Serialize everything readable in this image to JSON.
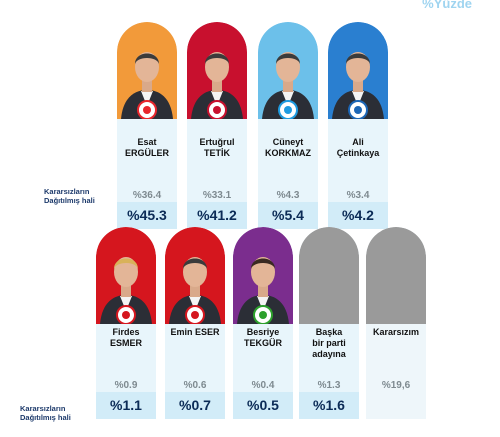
{
  "header": {
    "corner_title": "%Yüzde"
  },
  "chart_data": {
    "type": "bar",
    "row_label": "Kararsızların\nDağıtılmış hali",
    "candidates": [
      {
        "name": "Esat\nERGÜLER",
        "old": "%36.4",
        "new": "%45.3",
        "old_value": 36.4,
        "new_value": 45.3,
        "color": "#e8262c",
        "bg": "#f29a3a",
        "logo_color": "#e8262c"
      },
      {
        "name": "Ertuğrul\nTETİK",
        "old": "%33.1",
        "new": "%41.2",
        "old_value": 33.1,
        "new_value": 41.2,
        "color": "#c8102e",
        "bg": "#c8102e",
        "logo_color": "#c8102e"
      },
      {
        "name": "Cüneyt\nKORKMAZ",
        "old": "%4.3",
        "new": "%5.4",
        "old_value": 4.3,
        "new_value": 5.4,
        "color": "#1f9be0",
        "bg": "#6cc0ea",
        "logo_color": "#1f9be0"
      },
      {
        "name": "Ali\nÇetinkaya",
        "old": "%3.4",
        "new": "%4.2",
        "old_value": 3.4,
        "new_value": 4.2,
        "color": "#1c66b5",
        "bg": "#2a7fd0",
        "logo_color": "#1c66b5"
      },
      {
        "name": "Firdes\nESMER",
        "old": "%0.9",
        "new": "%1.1",
        "old_value": 0.9,
        "new_value": 1.1,
        "color": "#d5161e",
        "bg": "#d5161e",
        "logo_color": "#d5161e"
      },
      {
        "name": "Emin ESER",
        "old": "%0.6",
        "new": "%0.7",
        "old_value": 0.6,
        "new_value": 0.7,
        "color": "#d5161e",
        "bg": "#d5161e",
        "logo_color": "#d5161e"
      },
      {
        "name": "Besriye\nTEKGÜR",
        "old": "%0.4",
        "new": "%0.5",
        "old_value": 0.4,
        "new_value": 0.5,
        "color": "#7b2d8e",
        "bg": "#7b2d8e",
        "logo_color": "#2ca02c"
      },
      {
        "name": "Başka\nbir parti\nadayına",
        "old": "%1.3",
        "new": "%1.6",
        "old_value": 1.3,
        "new_value": 1.6,
        "color": "#9a9a9a",
        "bg": "#9a9a9a",
        "logo_color": ""
      },
      {
        "name": "Kararsızım",
        "old": "%19,6",
        "new": "",
        "old_value": 19.6,
        "new_value": null,
        "color": "#9a9a9a",
        "bg": "#9a9a9a",
        "logo_color": ""
      }
    ]
  }
}
